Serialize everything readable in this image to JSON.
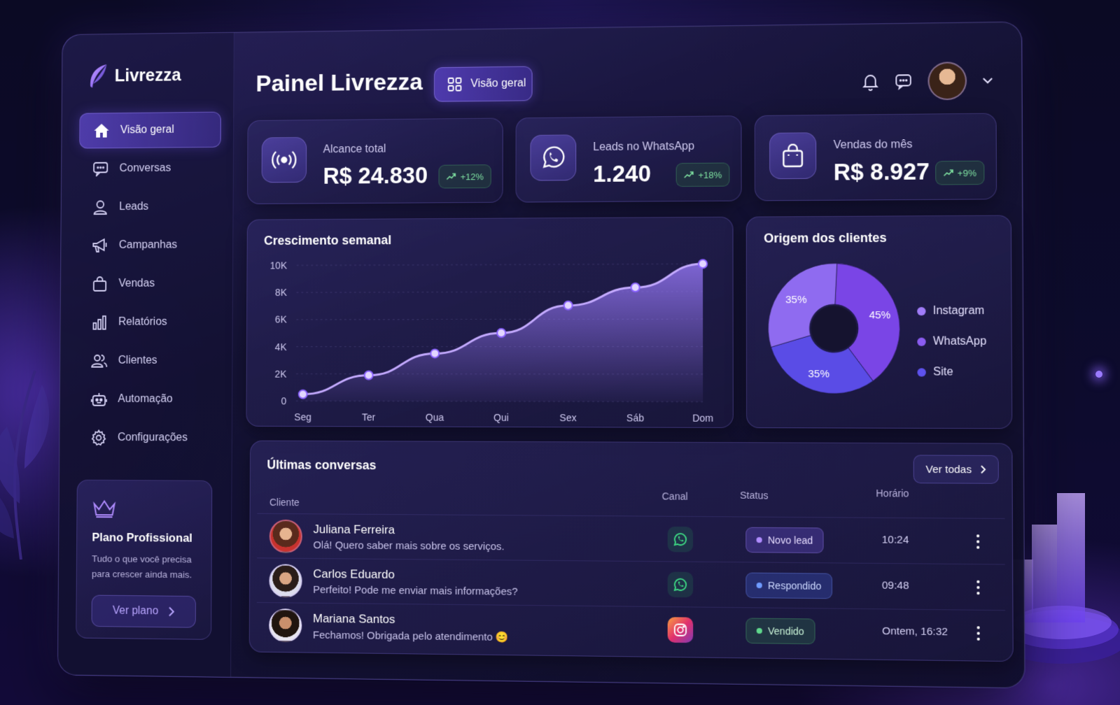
{
  "brand": {
    "name": "Livrezza"
  },
  "sidebar": {
    "items": [
      {
        "label": "Visão geral",
        "icon": "home-icon",
        "active": true
      },
      {
        "label": "Conversas",
        "icon": "chat-icon"
      },
      {
        "label": "Leads",
        "icon": "user-icon"
      },
      {
        "label": "Campanhas",
        "icon": "megaphone-icon"
      },
      {
        "label": "Vendas",
        "icon": "bag-icon"
      },
      {
        "label": "Relatórios",
        "icon": "bar-chart-icon"
      },
      {
        "label": "Clientes",
        "icon": "users-icon"
      },
      {
        "label": "Automação",
        "icon": "robot-icon"
      },
      {
        "label": "Configurações",
        "icon": "gear-icon"
      }
    ],
    "plan": {
      "title": "Plano Profissional",
      "description": "Tudo o que você precisa para crescer ainda mais.",
      "button": "Ver plano"
    }
  },
  "header": {
    "title": "Painel Livrezza",
    "view_chip": "Visão geral"
  },
  "stats": [
    {
      "label": "Alcance total",
      "value": "R$ 24.830",
      "delta": "+12%",
      "icon": "broadcast-icon"
    },
    {
      "label": "Leads no WhatsApp",
      "value": "1.240",
      "delta": "+18%",
      "icon": "whatsapp-icon"
    },
    {
      "label": "Vendas do mês",
      "value": "R$ 8.927",
      "delta": "+9%",
      "icon": "bag-icon"
    }
  ],
  "chart_data": [
    {
      "type": "area",
      "title": "Crescimento semanal",
      "categories": [
        "Seg",
        "Ter",
        "Qua",
        "Qui",
        "Sex",
        "Sáb",
        "Dom"
      ],
      "values": [
        500,
        1900,
        3500,
        5000,
        7000,
        8300,
        11000
      ],
      "y_ticks": [
        "0",
        "2K",
        "4K",
        "6K",
        "8K",
        "10K"
      ],
      "ylim": [
        0,
        10000
      ],
      "color": "#9b7bff"
    },
    {
      "type": "pie",
      "title": "Origem dos clientes",
      "slices": [
        {
          "name": "Instagram",
          "value": 35,
          "label": "35%",
          "color": "#8f6bf0"
        },
        {
          "name": "WhatsApp",
          "value": 45,
          "label": "45%",
          "color": "#7a45e6"
        },
        {
          "name": "Site",
          "value": 35,
          "label": "35%",
          "color": "#5a4ce6"
        }
      ],
      "legend_position": "right"
    }
  ],
  "conversations": {
    "title": "Últimas conversas",
    "see_all": "Ver todas",
    "columns": [
      "Cliente",
      "Canal",
      "Status",
      "Horário"
    ],
    "rows": [
      {
        "name": "Juliana Ferreira",
        "message": "Olá! Quero saber mais sobre os serviços.",
        "channel": "whatsapp-icon",
        "status": "Novo lead",
        "status_color": "#b08cff",
        "time": "10:24"
      },
      {
        "name": "Carlos Eduardo",
        "message": "Perfeito! Pode me enviar mais informações?",
        "channel": "whatsapp-icon",
        "status": "Respondido",
        "status_color": "#6f9bff",
        "time": "09:48"
      },
      {
        "name": "Mariana Santos",
        "message": "Fechamos! Obrigada pelo atendimento 😊",
        "channel": "instagram-icon",
        "status": "Vendido",
        "status_color": "#5fd88c",
        "time": "Ontem, 16:32"
      }
    ]
  }
}
